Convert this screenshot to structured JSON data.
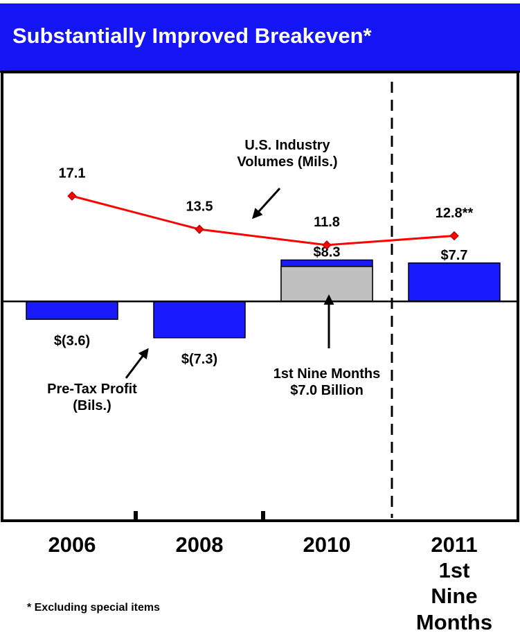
{
  "chart_data": {
    "type": "bar",
    "title": "Substantially Improved Breakeven*",
    "footnote": "* Excluding special items",
    "categories": [
      "2006",
      "2008",
      "2010",
      "2011\n1st Nine\nMonths"
    ],
    "ylim": [
      -44,
      46
    ],
    "y2lim": [
      -18,
      30.5
    ],
    "series": [
      {
        "name": "Pre-Tax Profit\n(Bils.)",
        "color": "#1a1aff",
        "values": [
          -3.6,
          -7.3,
          8.3,
          7.7
        ],
        "value_labels": [
          "$(3.6)",
          "$(7.3)",
          "$8.3",
          "$7.7"
        ]
      },
      {
        "name": "U.S. Industry\nVolumes (Mils.)",
        "type": "line",
        "axis": "y2",
        "color": "#ff0000",
        "values": [
          17.1,
          13.5,
          11.8,
          12.8
        ],
        "value_labels": [
          "17.1",
          "13.5",
          "11.8",
          "12.8**"
        ]
      },
      {
        "name": "1st Nine Months\n$7.0 Billion",
        "color": "#c0c0c0",
        "values": [
          null,
          null,
          7.0,
          null
        ]
      }
    ]
  }
}
